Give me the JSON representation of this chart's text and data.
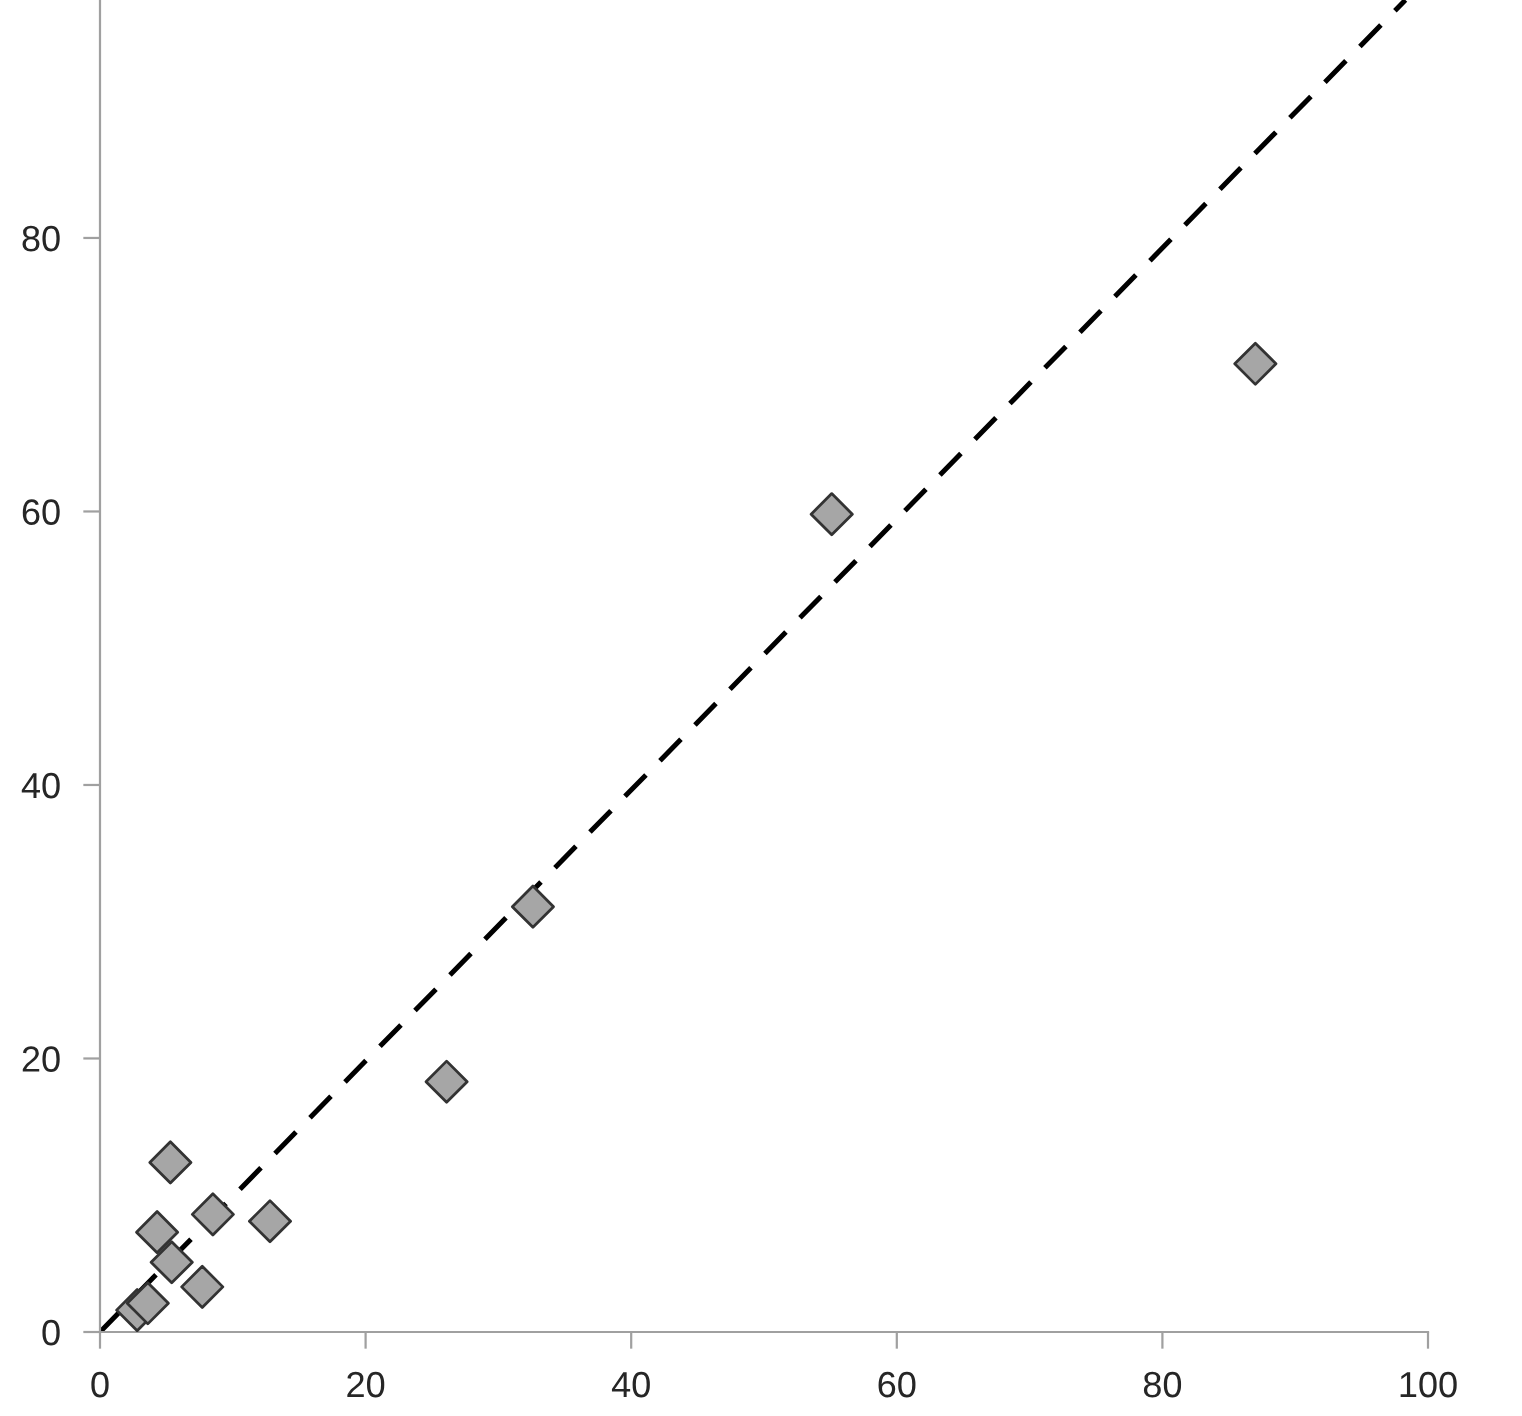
{
  "chart_data": {
    "type": "scatter",
    "xlim": [
      0,
      100
    ],
    "xticks": [
      0,
      20,
      40,
      60,
      80,
      100
    ],
    "ylim": [
      0,
      97.4
    ],
    "yticks": [
      0,
      20,
      40,
      60,
      80
    ],
    "grid": false,
    "marker": "diamond",
    "series": [
      {
        "color": "#a6a6a6",
        "x": [
          2.8,
          3.6,
          4.3,
          5.3,
          5.4,
          7.7,
          8.5,
          12.8,
          26.1,
          32.6,
          55.1,
          87.0
        ],
        "values": [
          1.6,
          2.1,
          7.3,
          12.4,
          5.1,
          3.3,
          8.6,
          8.1,
          18.3,
          31.1,
          59.8,
          70.8
        ]
      },
      {
        "type": "line",
        "color": "#000000",
        "line_style": "dashed",
        "marker": "none",
        "x": [
          0,
          98.3
        ],
        "values": [
          0,
          97.4
        ]
      }
    ]
  }
}
